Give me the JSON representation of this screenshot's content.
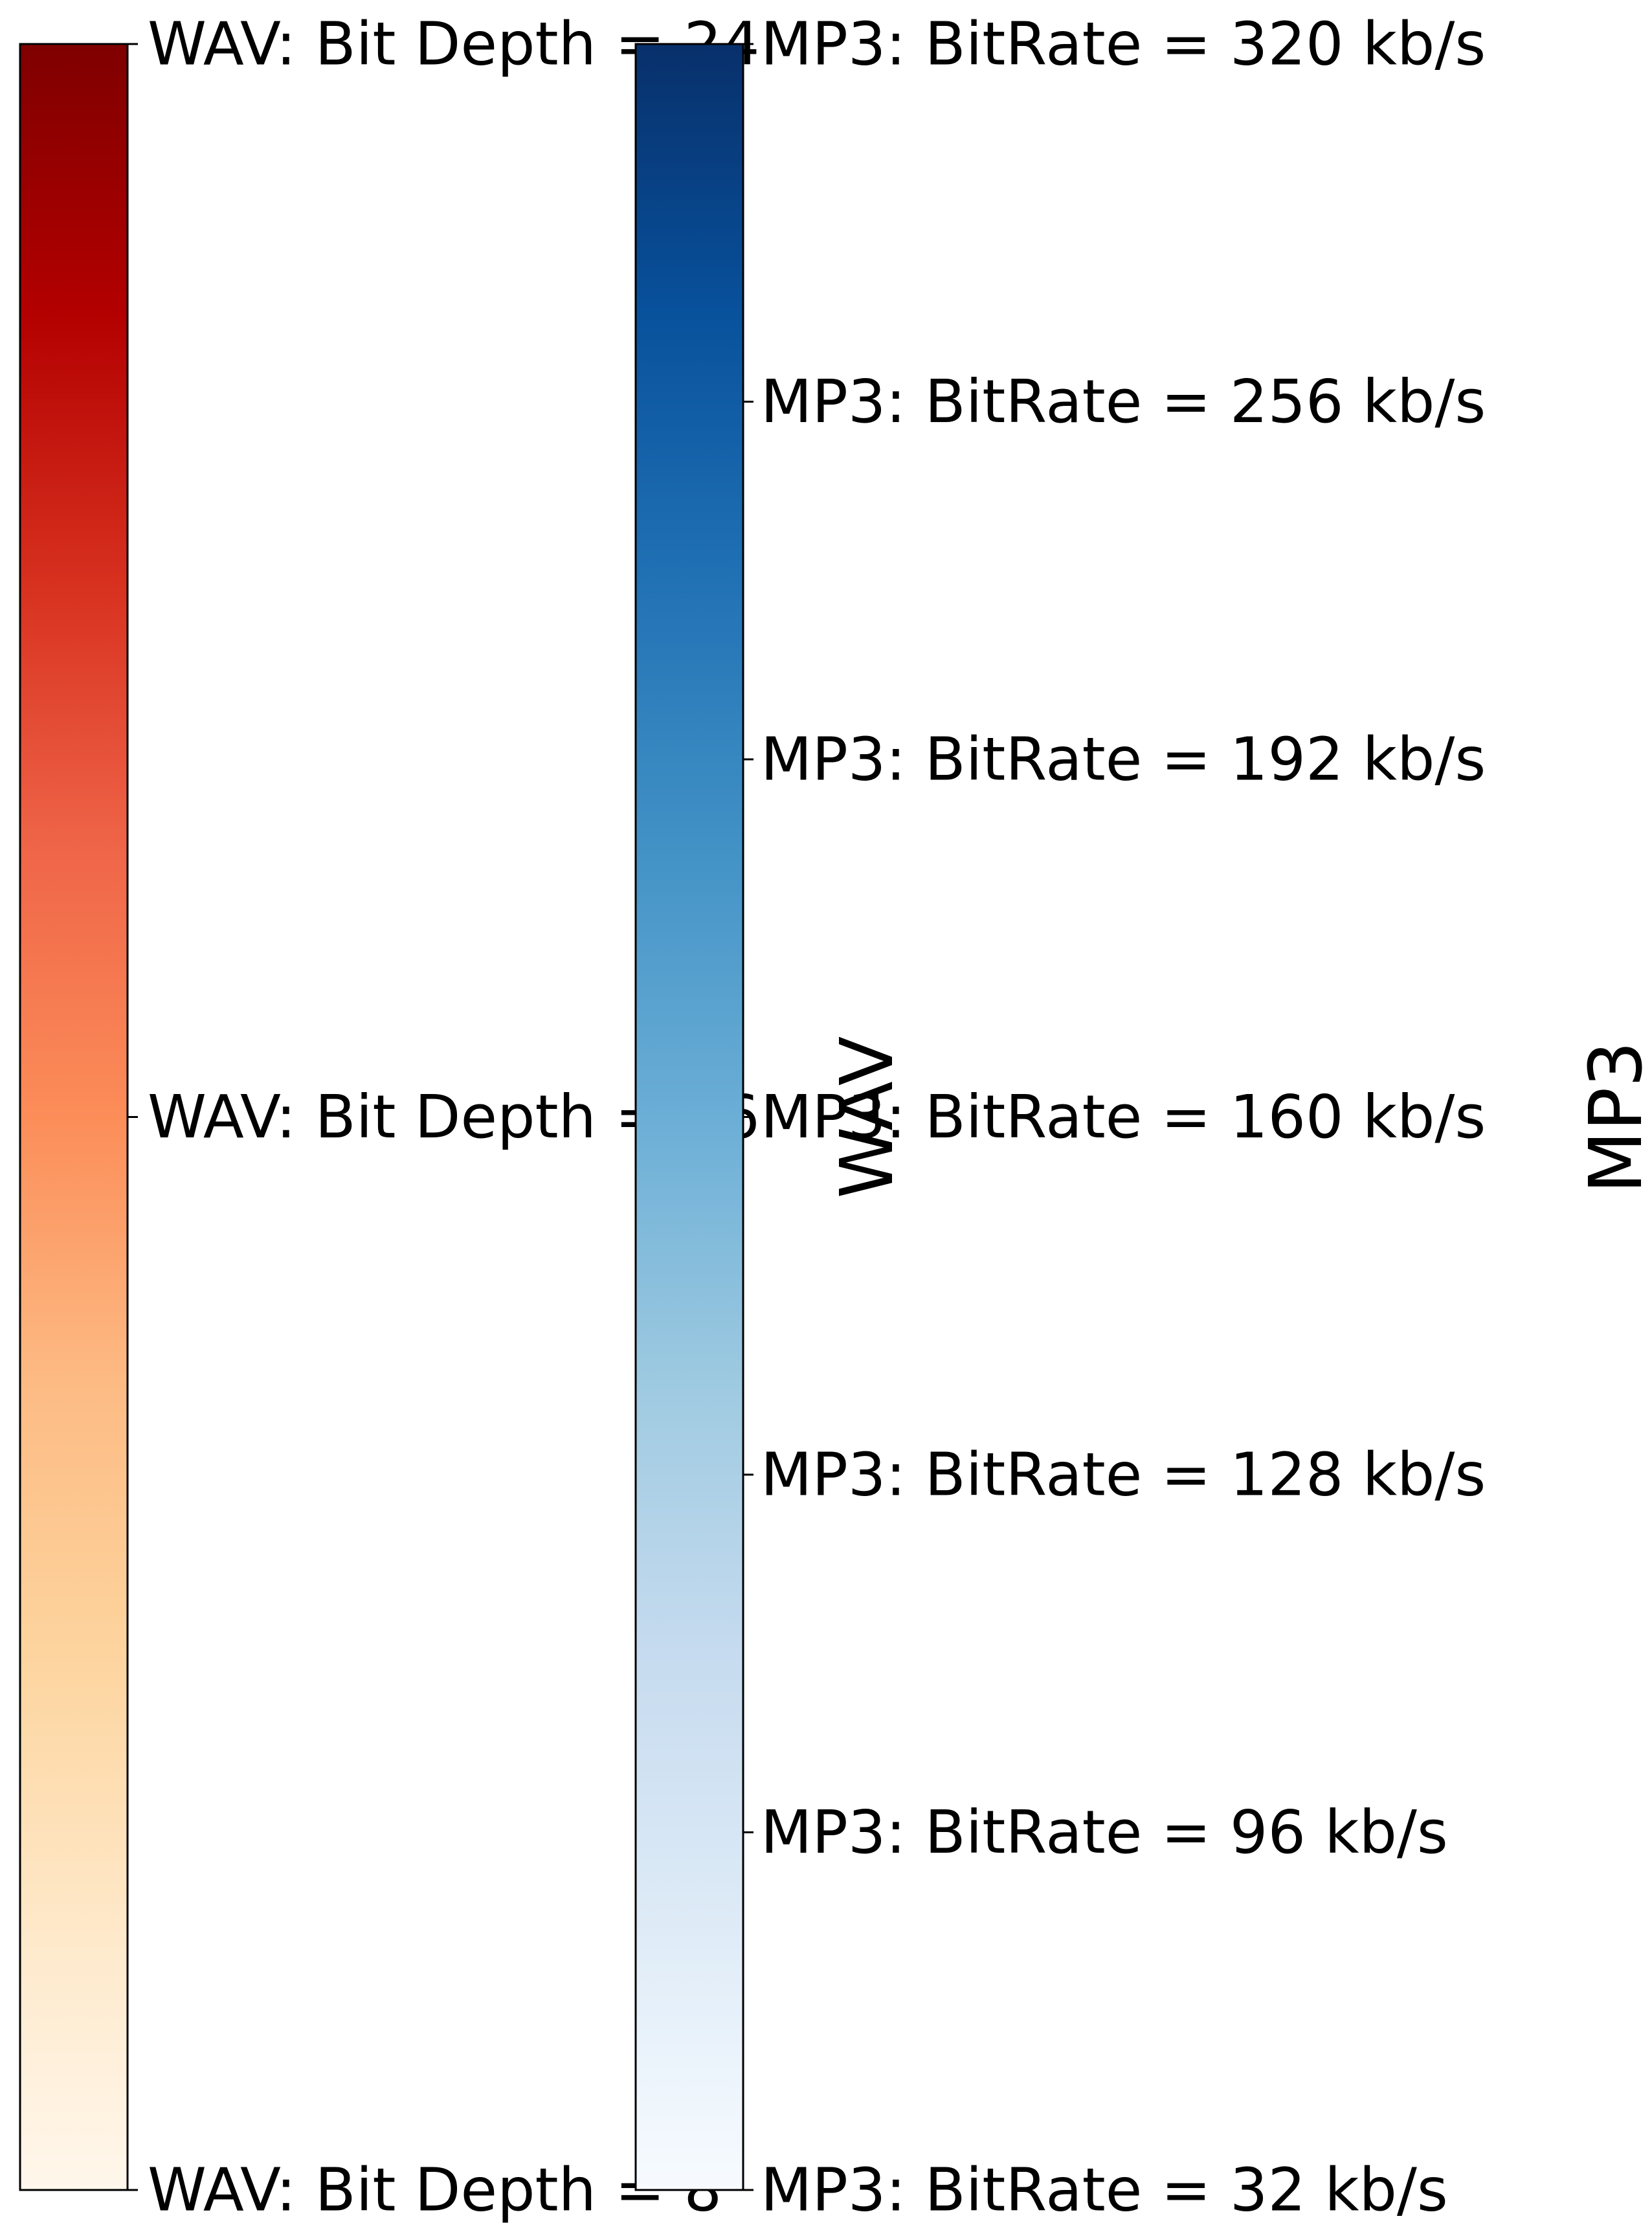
{
  "chart_data": [
    {
      "type": "colorbar",
      "colormap": "OrRd",
      "label": "WAV",
      "ticks": [
        {
          "value": 8,
          "label": "WAV: Bit Depth = 8"
        },
        {
          "value": 16,
          "label": "WAV: Bit Depth = 16"
        },
        {
          "value": 24,
          "label": "WAV: Bit Depth = 24"
        }
      ],
      "range": [
        8,
        24
      ],
      "colors": [
        "#fff7ec",
        "#fee8c8",
        "#fdd49e",
        "#fdbb84",
        "#fc8d59",
        "#ef6548",
        "#d7301f",
        "#b30000",
        "#7f0000"
      ]
    },
    {
      "type": "colorbar",
      "colormap": "Blues",
      "label": "MP3",
      "ticks": [
        {
          "value": 0,
          "label": "MP3: BitRate = 32 kb/s"
        },
        {
          "value": 1,
          "label": "MP3: BitRate = 96 kb/s"
        },
        {
          "value": 2,
          "label": "MP3: BitRate = 128 kb/s"
        },
        {
          "value": 3,
          "label": "MP3: BitRate = 160 kb/s"
        },
        {
          "value": 4,
          "label": "MP3: BitRate = 192 kb/s"
        },
        {
          "value": 5,
          "label": "MP3: BitRate = 256 kb/s"
        },
        {
          "value": 6,
          "label": "MP3: BitRate = 320 kb/s"
        }
      ],
      "range": [
        0,
        6
      ],
      "colors": [
        "#f7fbff",
        "#deebf7",
        "#c6dbef",
        "#9ecae1",
        "#6baed6",
        "#4292c6",
        "#2171b5",
        "#08519c",
        "#08306b"
      ]
    }
  ]
}
